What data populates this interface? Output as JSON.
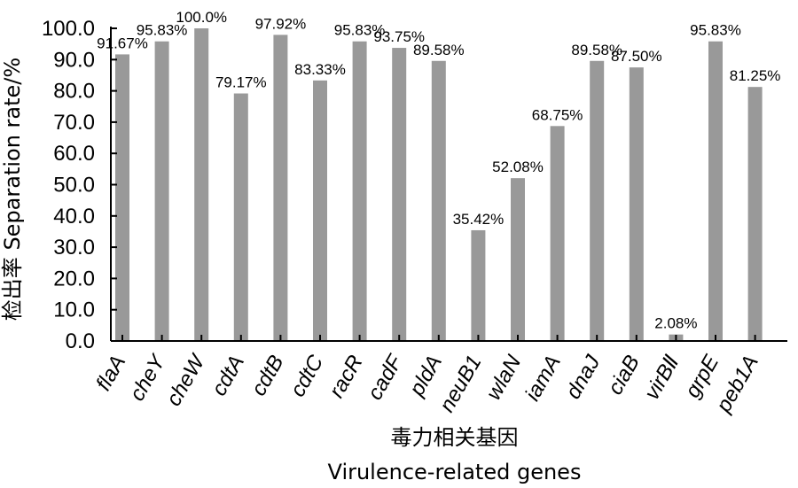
{
  "chart_data": {
    "type": "bar",
    "xlabel_cn": "毒力相关基因",
    "xlabel": "Virulence-related genes",
    "ylabel": "检出率 Separation rate/%",
    "ylim": [
      0,
      100
    ],
    "yticks": [
      "0.0",
      "10.0",
      "20.0",
      "30.0",
      "40.0",
      "50.0",
      "60.0",
      "70.0",
      "80.0",
      "90.0",
      "100.0"
    ],
    "categories": [
      "flaA",
      "cheY",
      "cheW",
      "cdtA",
      "cdtB",
      "cdtC",
      "racR",
      "cadF",
      "pldA",
      "neuB1",
      "wlaN",
      "iamA",
      "dnaJ",
      "ciaB",
      "virBⅡ",
      "grpE",
      "peb1A"
    ],
    "values": [
      91.67,
      95.83,
      100.0,
      79.17,
      97.92,
      83.33,
      95.83,
      93.75,
      89.58,
      35.42,
      52.08,
      68.75,
      89.58,
      87.5,
      2.08,
      95.83,
      81.25
    ],
    "data_labels": [
      "91.67%",
      "95.83%",
      "100.0%",
      "79.17%",
      "97.92%",
      "83.33%",
      "95.83%",
      "93.75%",
      "89.58%",
      "35.42%",
      "52.08%",
      "68.75%",
      "89.58%",
      "87.50%",
      "2.08%",
      "95.83%",
      "81.25%"
    ],
    "bar_color": "#999999",
    "grid": false,
    "legend": "none"
  }
}
